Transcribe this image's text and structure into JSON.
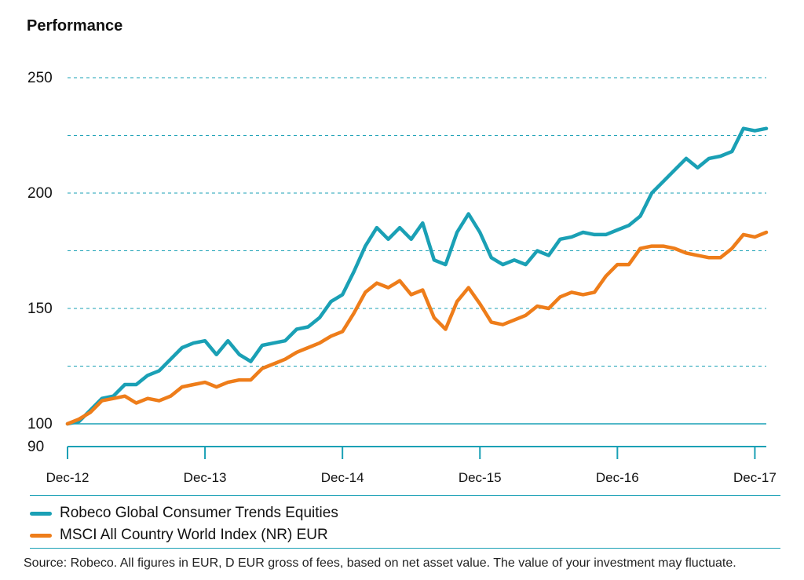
{
  "title": "Performance",
  "source": "Source: Robeco. All figures in EUR, D EUR gross of fees, based on net asset value. The value of your investment may fluctuate.",
  "chart_data": {
    "type": "line",
    "title": "Performance",
    "xlabel": "",
    "ylabel": "",
    "ylim": [
      90,
      250
    ],
    "yticks": [
      90,
      100,
      150,
      200,
      250
    ],
    "ytick_labels": [
      "90",
      "100",
      "150",
      "200",
      "250"
    ],
    "xticks": [
      0,
      12,
      24,
      36,
      48,
      60
    ],
    "xtick_labels": [
      "Dec-12",
      "Dec-13",
      "Dec-14",
      "Dec-15",
      "Dec-16",
      "Dec-17"
    ],
    "x_unit": "months since Dec-12",
    "grid": "horizontal dashed",
    "legend_position": "bottom",
    "colors": {
      "series_1": "#1aa0b5",
      "series_2": "#ee7d1a",
      "axis": "#1aa0b5",
      "grid": "#1aa0b5"
    },
    "series": [
      {
        "name": "Robeco Global Consumer  Trends Equities",
        "color": "#1aa0b5",
        "values": [
          100,
          101,
          106,
          111,
          112,
          117,
          117,
          121,
          123,
          128,
          133,
          135,
          136,
          130,
          136,
          130,
          127,
          134,
          135,
          136,
          141,
          142,
          146,
          153,
          156,
          166,
          177,
          185,
          180,
          185,
          180,
          187,
          171,
          169,
          183,
          191,
          183,
          172,
          169,
          171,
          169,
          175,
          173,
          180,
          181,
          183,
          182,
          182,
          184,
          186,
          190,
          200,
          205,
          210,
          215,
          211,
          215,
          216,
          218,
          228,
          227,
          228
        ]
      },
      {
        "name": "MSCI All Country World Index (NR) EUR",
        "color": "#ee7d1a",
        "values": [
          100,
          102,
          105,
          110,
          111,
          112,
          109,
          111,
          110,
          112,
          116,
          117,
          118,
          116,
          118,
          119,
          119,
          124,
          126,
          128,
          131,
          133,
          135,
          138,
          140,
          148,
          157,
          161,
          159,
          162,
          156,
          158,
          146,
          141,
          153,
          159,
          152,
          144,
          143,
          145,
          147,
          151,
          150,
          155,
          157,
          156,
          157,
          164,
          169,
          169,
          176,
          177,
          177,
          176,
          174,
          173,
          172,
          172,
          176,
          182,
          181,
          183
        ]
      }
    ]
  }
}
